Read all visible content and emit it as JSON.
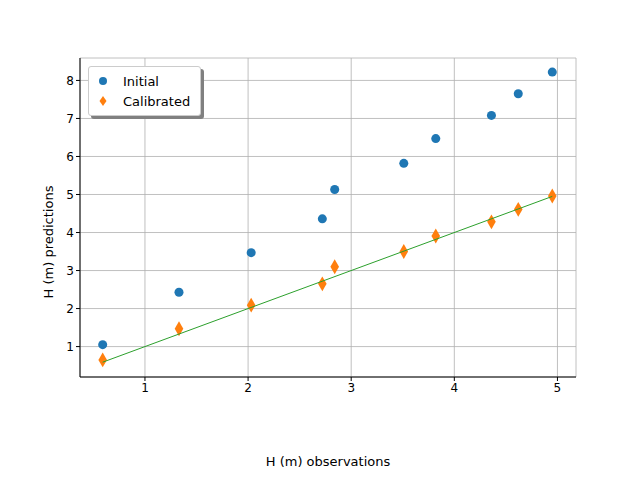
{
  "chart_data": {
    "type": "scatter",
    "x_label": "H (m) observations",
    "y_label": "H (m) predictions",
    "xlim": [
      0.37,
      5.18
    ],
    "ylim": [
      0.2,
      8.59
    ],
    "xticks": [
      1,
      2,
      3,
      4,
      5
    ],
    "yticks": [
      1,
      2,
      3,
      4,
      5,
      6,
      7,
      8
    ],
    "grid": true,
    "legend": "upper left",
    "series": [
      {
        "name": "Initial",
        "color": "#1f77b4",
        "marker": "circle",
        "x": [
          0.59,
          1.33,
          2.03,
          2.72,
          2.84,
          3.51,
          3.82,
          4.36,
          4.62,
          4.95
        ],
        "values": [
          1.05,
          2.43,
          3.47,
          4.36,
          5.13,
          5.82,
          6.47,
          7.08,
          7.65,
          8.22
        ]
      },
      {
        "name": "Calibrated",
        "color": "#ff7f0e",
        "marker": "diamond",
        "x": [
          0.59,
          1.33,
          2.03,
          2.72,
          2.84,
          3.51,
          3.82,
          4.36,
          4.62,
          4.95
        ],
        "values": [
          0.65,
          1.47,
          2.09,
          2.65,
          3.1,
          3.5,
          3.91,
          4.28,
          4.61,
          4.96
        ]
      },
      {
        "type": "line",
        "color": "#2ca02c",
        "line_style": "solid",
        "x": [
          0.59,
          4.95
        ],
        "values": [
          0.59,
          4.95
        ]
      }
    ]
  }
}
